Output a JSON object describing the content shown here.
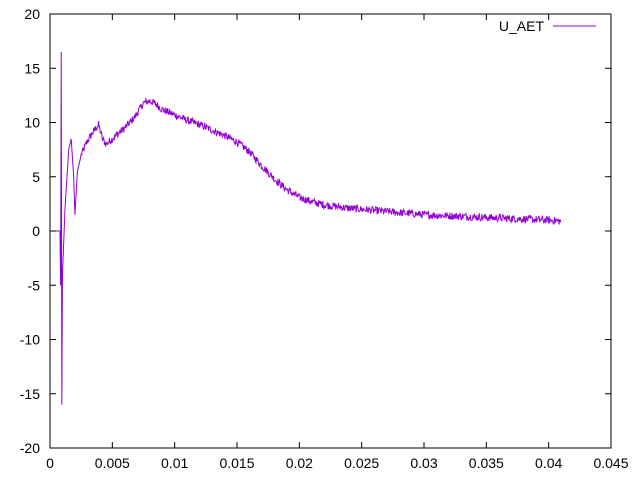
{
  "chart_data": {
    "type": "line",
    "title": "",
    "xlabel": "",
    "ylabel": "",
    "xlim": [
      0,
      0.045
    ],
    "ylim": [
      -20,
      20
    ],
    "grid": false,
    "legend_position": "top-right",
    "x_ticks": [
      "0",
      "0.005",
      "0.01",
      "0.015",
      "0.02",
      "0.025",
      "0.03",
      "0.035",
      "0.04",
      "0.045"
    ],
    "y_ticks": [
      "20",
      "15",
      "10",
      "5",
      "0",
      "-5",
      "-10",
      "-15",
      "-20"
    ],
    "series": [
      {
        "name": "U_AET",
        "color": "#9400d3",
        "points": [
          [
            0.0,
            0.0
          ],
          [
            0.0008,
            0.0
          ],
          [
            0.00085,
            -5.0
          ],
          [
            0.0009,
            16.5
          ],
          [
            0.00095,
            -16.0
          ],
          [
            0.001,
            -4.0
          ],
          [
            0.0012,
            2.0
          ],
          [
            0.0015,
            7.5
          ],
          [
            0.0017,
            8.5
          ],
          [
            0.0019,
            5.0
          ],
          [
            0.002,
            1.5
          ],
          [
            0.0022,
            5.5
          ],
          [
            0.0025,
            7.0
          ],
          [
            0.003,
            8.3
          ],
          [
            0.0035,
            9.2
          ],
          [
            0.0039,
            9.8
          ],
          [
            0.0042,
            8.5
          ],
          [
            0.0045,
            8.0
          ],
          [
            0.005,
            8.5
          ],
          [
            0.006,
            9.5
          ],
          [
            0.0068,
            10.5
          ],
          [
            0.0075,
            11.8
          ],
          [
            0.008,
            12.0
          ],
          [
            0.0085,
            11.7
          ],
          [
            0.009,
            11.2
          ],
          [
            0.01,
            10.7
          ],
          [
            0.011,
            10.2
          ],
          [
            0.012,
            9.8
          ],
          [
            0.013,
            9.3
          ],
          [
            0.014,
            8.8
          ],
          [
            0.015,
            8.2
          ],
          [
            0.016,
            7.3
          ],
          [
            0.017,
            6.0
          ],
          [
            0.018,
            4.8
          ],
          [
            0.019,
            3.8
          ],
          [
            0.02,
            3.1
          ],
          [
            0.021,
            2.7
          ],
          [
            0.022,
            2.4
          ],
          [
            0.024,
            2.1
          ],
          [
            0.026,
            1.9
          ],
          [
            0.028,
            1.7
          ],
          [
            0.03,
            1.5
          ],
          [
            0.032,
            1.4
          ],
          [
            0.034,
            1.3
          ],
          [
            0.036,
            1.2
          ],
          [
            0.038,
            1.1
          ],
          [
            0.04,
            1.0
          ],
          [
            0.041,
            0.9
          ]
        ],
        "noise_amplitude": 0.35
      }
    ]
  }
}
